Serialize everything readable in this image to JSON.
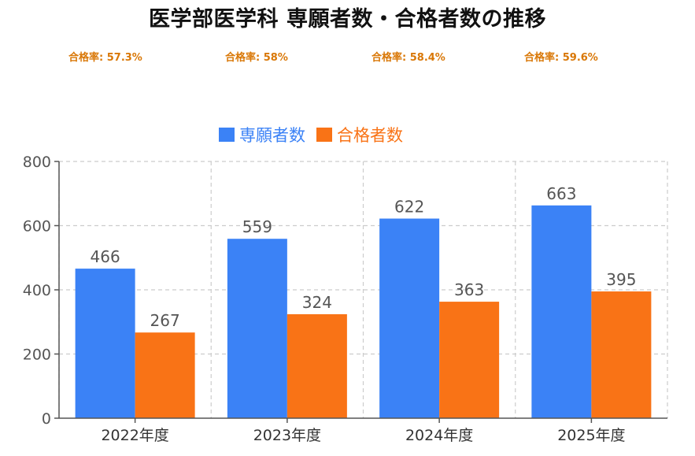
{
  "title": "医学部医学科 専願者数・合格者数の推移",
  "pass_rates": [
    {
      "text": "合格率: 57.3%"
    },
    {
      "text": "合格率: 58%"
    },
    {
      "text": "合格率: 58.4%"
    },
    {
      "text": "合格率: 59.6%"
    }
  ],
  "colors": {
    "series1": "#3b82f6",
    "series2": "#f97316",
    "rate_text": "#d97706",
    "grid": "#cccccc",
    "axis": "#555555"
  },
  "chart_data": {
    "type": "bar",
    "title": "医学部医学科 専願者数・合格者数の推移",
    "xlabel": "",
    "ylabel": "",
    "categories": [
      "2022年度",
      "2023年度",
      "2024年度",
      "2025年度"
    ],
    "series": [
      {
        "name": "専願者数",
        "values": [
          466,
          559,
          622,
          663
        ]
      },
      {
        "name": "合格者数",
        "values": [
          267,
          324,
          363,
          395
        ]
      }
    ],
    "ylim": [
      0,
      800
    ],
    "yticks": [
      0,
      200,
      400,
      600,
      800
    ],
    "grid": true,
    "legend_position": "top-center",
    "data_labels": true
  }
}
